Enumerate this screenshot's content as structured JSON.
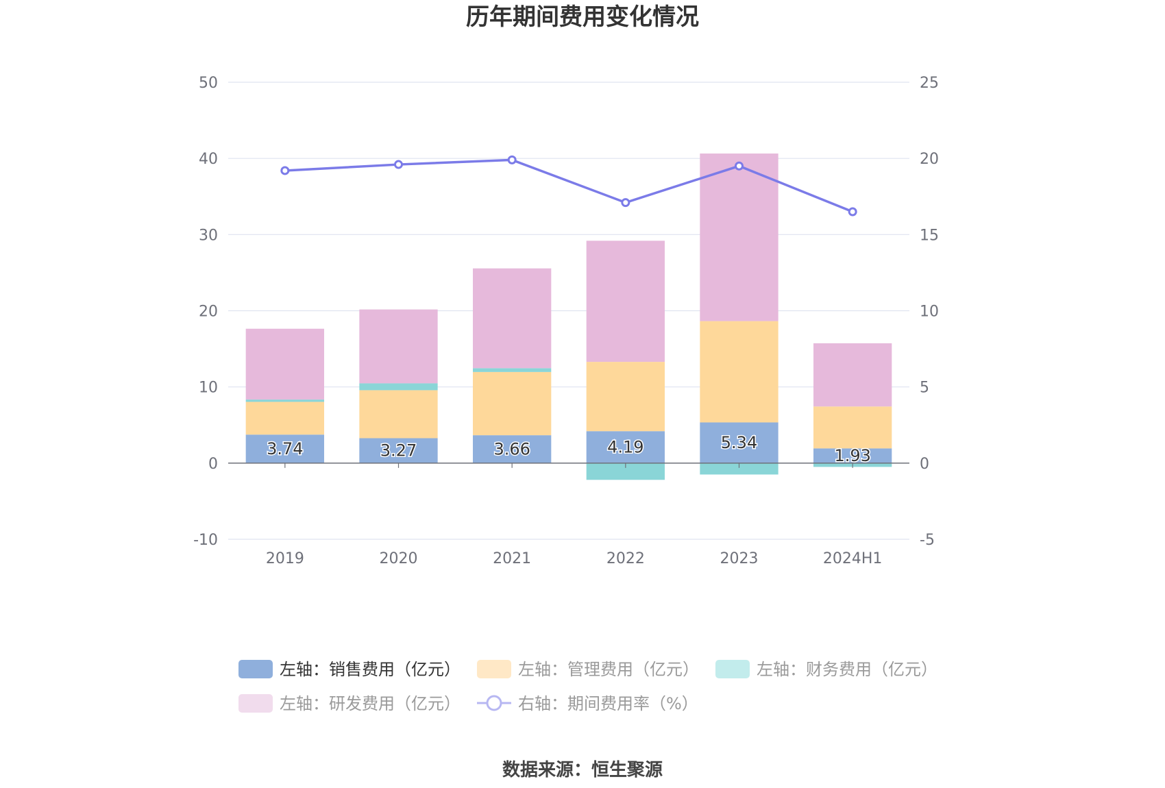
{
  "chart_data": {
    "type": "bar",
    "title": "历年期间费用变化情况",
    "categories": [
      "2019",
      "2020",
      "2021",
      "2022",
      "2023",
      "2024H1"
    ],
    "left_axis": {
      "ylim": [
        -10,
        50
      ],
      "ticks": [
        "-10",
        "0",
        "10",
        "20",
        "30",
        "40",
        "50"
      ]
    },
    "right_axis": {
      "ylim": [
        -5,
        25
      ],
      "ticks": [
        "-5",
        "0",
        "5",
        "10",
        "15",
        "20",
        "25"
      ]
    },
    "series": [
      {
        "name": "左轴：销售费用（亿元）",
        "kind": "bar",
        "axis": "left",
        "color": "#8fafdc",
        "values": [
          3.74,
          3.27,
          3.66,
          4.19,
          5.34,
          1.93
        ],
        "labels": [
          "3.74",
          "3.27",
          "3.66",
          "4.19",
          "5.34",
          "1.93"
        ]
      },
      {
        "name": "左轴：管理费用（亿元）",
        "kind": "bar",
        "axis": "left",
        "color": "#fed89a",
        "values": [
          4.3,
          6.3,
          8.3,
          9.1,
          13.3,
          5.5
        ]
      },
      {
        "name": "左轴：财务费用（亿元）",
        "kind": "bar",
        "axis": "left",
        "color": "#8ad5d7",
        "values": [
          0.3,
          0.9,
          0.5,
          -2.2,
          -1.5,
          -0.5
        ]
      },
      {
        "name": "左轴：研发费用（亿元）",
        "kind": "bar",
        "axis": "left",
        "color": "#e6b9db",
        "values": [
          9.3,
          9.7,
          13.1,
          15.9,
          22.0,
          8.3
        ]
      },
      {
        "name": "右轴：期间费用率（%）",
        "kind": "line",
        "axis": "right",
        "color": "#7b7be8",
        "values": [
          19.2,
          19.6,
          19.9,
          17.1,
          19.5,
          16.5
        ]
      }
    ],
    "legend_position": "bottom",
    "grid": true
  },
  "source_text": "数据来源：恒生聚源"
}
